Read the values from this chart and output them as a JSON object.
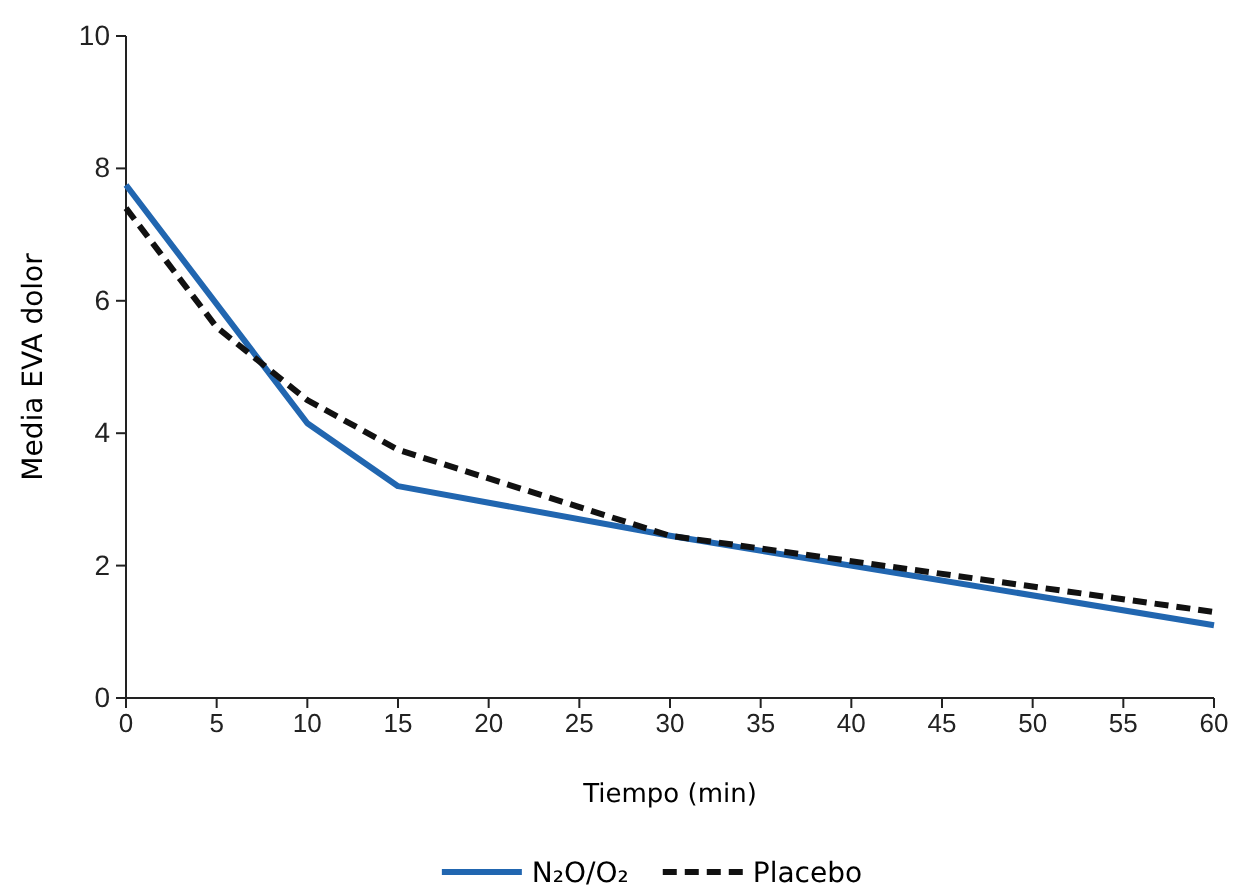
{
  "chart_data": {
    "type": "line",
    "xlabel": "Tiempo (min)",
    "ylabel": "Media EVA dolor",
    "x": [
      0,
      10,
      15,
      30,
      60
    ],
    "series": [
      {
        "name": "N₂O/O₂",
        "color": "#2166b0",
        "line_style": "solid",
        "values": [
          7.75,
          4.15,
          3.2,
          2.45,
          1.1
        ]
      },
      {
        "name": "Placebo",
        "color": "#111111",
        "line_style": "dashed",
        "x": [
          0,
          5,
          10,
          15,
          30,
          60
        ],
        "values": [
          7.4,
          5.6,
          4.5,
          3.75,
          2.45,
          1.3
        ]
      }
    ],
    "xlim": [
      0,
      60
    ],
    "xticks": [
      0,
      5,
      10,
      15,
      20,
      25,
      30,
      35,
      40,
      45,
      50,
      55,
      60
    ],
    "ylim": [
      0,
      10
    ],
    "yticks": [
      0,
      2,
      4,
      6,
      8,
      10
    ],
    "grid": false,
    "legend": "bottom",
    "marker": "none"
  }
}
